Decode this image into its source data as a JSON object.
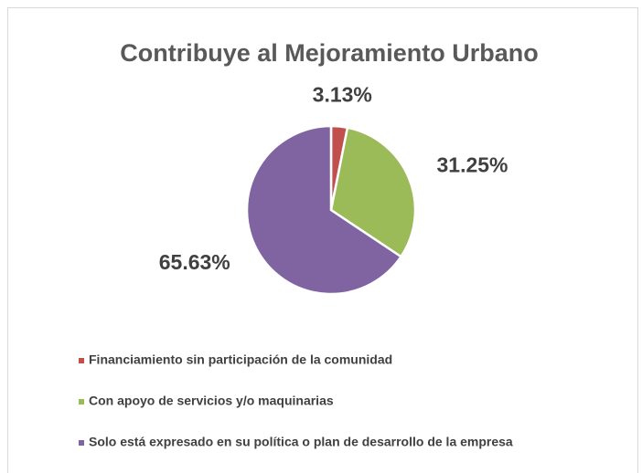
{
  "chart_data": {
    "type": "pie",
    "title": "Contribuye al Mejoramiento Urbano",
    "categories": [
      "Financiamiento sin participación de la comunidad",
      "Con apoyo de servicios y/o maquinarias",
      "Solo está expresado en su política o plan de desarrollo de la empresa"
    ],
    "values": [
      3.13,
      31.25,
      65.63
    ],
    "value_labels": [
      "3.13%",
      "31.25%",
      "65.63%"
    ],
    "colors": [
      "#c0504d",
      "#9bbb59",
      "#8064a2"
    ]
  }
}
